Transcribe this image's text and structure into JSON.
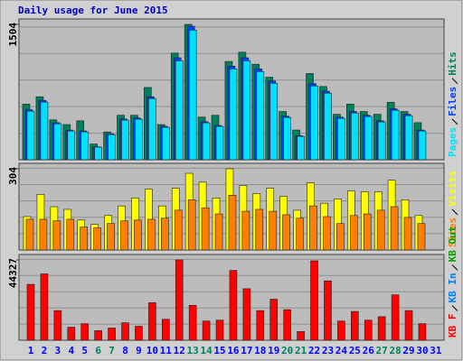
{
  "chart_data": [
    {
      "type": "bar",
      "title": "Daily usage for June 2015",
      "ylim": [
        0,
        1504
      ],
      "yticks": [
        1504
      ],
      "grid": true,
      "series": [
        {
          "name": "Hits",
          "color": "#00805c",
          "values": [
            618,
            700,
            443,
            391,
            433,
            175,
            309,
            494,
            494,
            803,
            391,
            1185,
            1504,
            474,
            494,
            1092,
            1195,
            1061,
            917,
            536,
            330,
            958,
            814,
            505,
            618,
            536,
            505,
            639,
            536,
            412,
            null
          ]
        },
        {
          "name": "Files",
          "color": "#0040ff",
          "values": [
            556,
            660,
            412,
            330,
            320,
            144,
            288,
            453,
            464,
            700,
            371,
            1133,
            1483,
            422,
            381,
            1040,
            1133,
            1010,
            876,
            484,
            268,
            845,
            762,
            474,
            536,
            494,
            433,
            567,
            505,
            330,
            null
          ]
        },
        {
          "name": "Pages",
          "color": "#00e0ff",
          "values": [
            540,
            640,
            400,
            320,
            310,
            140,
            280,
            440,
            450,
            680,
            360,
            1100,
            1440,
            410,
            370,
            1010,
            1100,
            980,
            850,
            470,
            260,
            820,
            740,
            460,
            520,
            480,
            420,
            550,
            490,
            320,
            null
          ]
        }
      ]
    },
    {
      "type": "bar",
      "ylim": [
        0,
        304
      ],
      "yticks": [
        304
      ],
      "grid": true,
      "series": [
        {
          "name": "Visits",
          "color": "#ffff00",
          "values": [
            125,
            208,
            162,
            152,
            112,
            96,
            129,
            165,
            195,
            228,
            165,
            231,
            287,
            254,
            195,
            304,
            241,
            211,
            231,
            201,
            149,
            251,
            175,
            191,
            221,
            218,
            218,
            261,
            188,
            129,
            null
          ]
        },
        {
          "name": "Sites",
          "color": "#ff8000",
          "values": [
            115,
            115,
            109,
            115,
            86,
            83,
            99,
            109,
            112,
            115,
            119,
            149,
            188,
            158,
            135,
            205,
            145,
            152,
            145,
            132,
            119,
            165,
            125,
            99,
            129,
            135,
            149,
            162,
            122,
            99,
            null
          ]
        }
      ]
    },
    {
      "type": "bar",
      "ylim": [
        0,
        44327
      ],
      "yticks": [
        44327
      ],
      "grid": true,
      "categories": [
        "1",
        "2",
        "3",
        "4",
        "5",
        "6",
        "7",
        "8",
        "9",
        "10",
        "11",
        "12",
        "13",
        "14",
        "15",
        "16",
        "17",
        "18",
        "19",
        "20",
        "21",
        "22",
        "23",
        "24",
        "25",
        "26",
        "27",
        "28",
        "29",
        "30",
        "31"
      ],
      "category_colors": [
        "#0000ff",
        "#0000ff",
        "#0000ff",
        "#0000ff",
        "#0000ff",
        "#00805c",
        "#00805c",
        "#0000ff",
        "#0000ff",
        "#0000ff",
        "#0000ff",
        "#0000ff",
        "#00805c",
        "#00805c",
        "#0000ff",
        "#0000ff",
        "#0000ff",
        "#0000ff",
        "#0000ff",
        "#00805c",
        "#00805c",
        "#0000ff",
        "#0000ff",
        "#0000ff",
        "#0000ff",
        "#0000ff",
        "#00805c",
        "#00805c",
        "#0000ff",
        "#0000ff",
        "#0000ff"
      ],
      "series": [
        {
          "name": "KB F",
          "color": "#ff0000",
          "values": [
            30840,
            36620,
            16380,
            7230,
            9160,
            5300,
            6750,
            9640,
            7710,
            20720,
            11570,
            44327,
            19280,
            10600,
            11090,
            38550,
            28430,
            16380,
            22650,
            16870,
            4820,
            43840,
            32770,
            10600,
            15900,
            11090,
            13010,
            25060,
            16380,
            9160,
            null
          ]
        }
      ],
      "extra_legend": [
        {
          "name": "KB In",
          "color": "#0080ff"
        },
        {
          "name": "KB Out",
          "color": "#00a000"
        }
      ]
    }
  ]
}
